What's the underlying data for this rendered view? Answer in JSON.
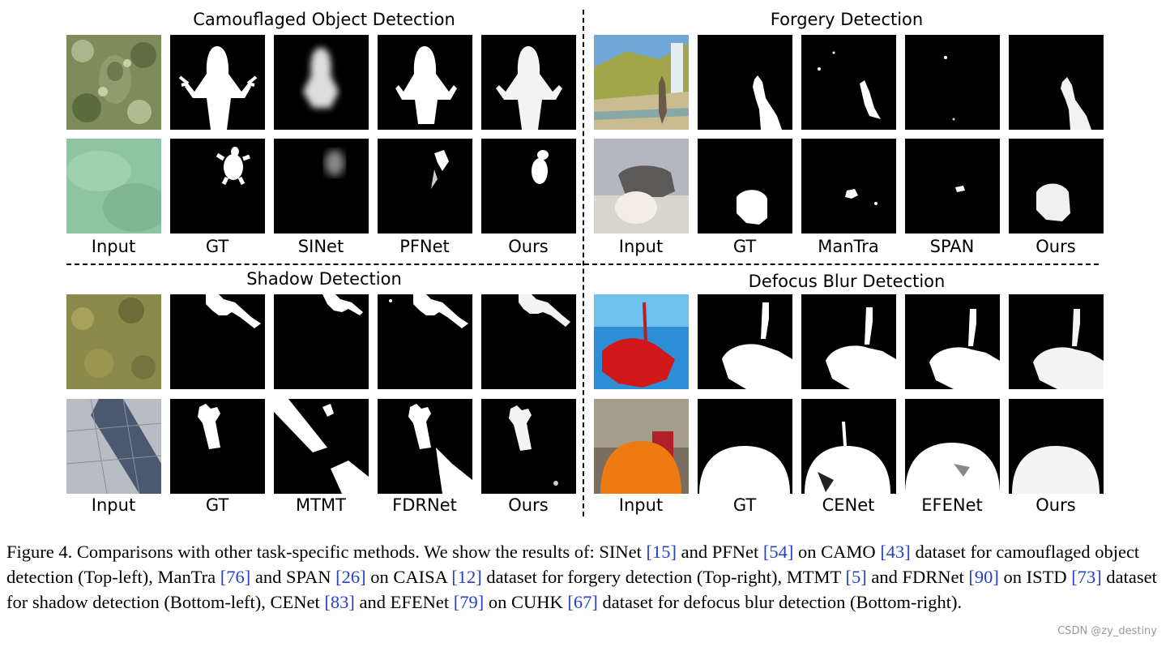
{
  "figure": {
    "quadrants": {
      "camo": {
        "title": "Camouflaged Object Detection",
        "labels": [
          "Input",
          "GT",
          "SINet",
          "PFNet",
          "Ours"
        ]
      },
      "forgery": {
        "title": "Forgery Detection",
        "labels": [
          "Input",
          "GT",
          "ManTra",
          "SPAN",
          "Ours"
        ]
      },
      "shadow": {
        "title": "Shadow Detection",
        "labels": [
          "Input",
          "GT",
          "MTMT",
          "FDRNet",
          "Ours"
        ]
      },
      "defocus": {
        "title": "Defocus Blur Detection",
        "labels": [
          "Input",
          "GT",
          "CENet",
          "EFENet",
          "Ours"
        ]
      }
    },
    "caption": {
      "p1": "Figure 4. Comparisons with other task-specific methods. We show the results of: SINet ",
      "r1": "[15]",
      "p2": " and PFNet ",
      "r2": "[54]",
      "p3": " on CAMO ",
      "r3": "[43]",
      "p4": " dataset for camouflaged object detection (Top-left), ManTra ",
      "r4": "[76]",
      "p5": " and SPAN ",
      "r5": "[26]",
      "p6": " on CAISA ",
      "r6": "[12]",
      "p7": " dataset for forgery detection (Top-right), MTMT ",
      "r7": "[5]",
      "p8": " and FDRNet ",
      "r8": "[90]",
      "p9": " on ISTD ",
      "r9": "[73]",
      "p10": " dataset for shadow detection (Bottom-left), CENet ",
      "r10": "[83]",
      "p11": " and EFENet ",
      "r11": "[79]",
      "p12": " on CUHK ",
      "r12": "[67]",
      "p13": " dataset for defocus blur detection (Bottom-right)."
    }
  },
  "watermark": "CSDN @zy_destiny"
}
